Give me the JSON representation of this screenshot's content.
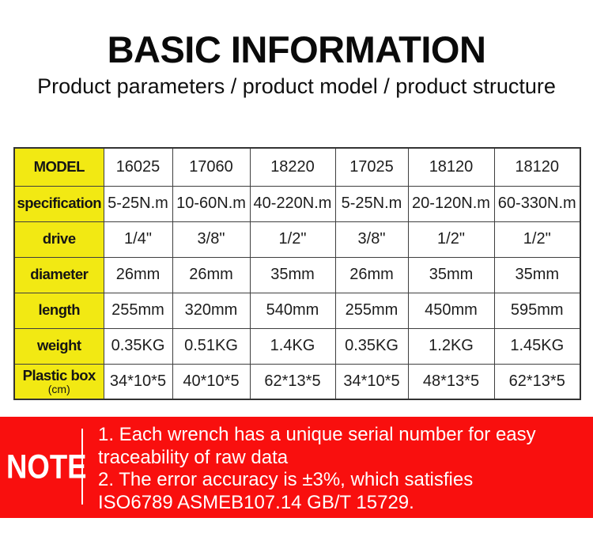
{
  "header": {
    "title": "BASIC INFORMATION",
    "subtitle": "Product parameters / product model / product structure"
  },
  "table": {
    "rows": [
      {
        "label": "MODEL",
        "sublabel": "",
        "values": [
          "16025",
          "17060",
          "18220",
          "17025",
          "18120",
          "18120"
        ]
      },
      {
        "label": "specification",
        "sublabel": "",
        "values": [
          "5-25N.m",
          "10-60N.m",
          "40-220N.m",
          "5-25N.m",
          "20-120N.m",
          "60-330N.m"
        ]
      },
      {
        "label": "drive",
        "sublabel": "",
        "values": [
          "1/4\"",
          "3/8\"",
          "1/2\"",
          "3/8\"",
          "1/2\"",
          "1/2\""
        ]
      },
      {
        "label": "diameter",
        "sublabel": "",
        "values": [
          "26mm",
          "26mm",
          "35mm",
          "26mm",
          "35mm",
          "35mm"
        ]
      },
      {
        "label": "length",
        "sublabel": "",
        "values": [
          "255mm",
          "320mm",
          "540mm",
          "255mm",
          "450mm",
          "595mm"
        ]
      },
      {
        "label": "weight",
        "sublabel": "",
        "values": [
          "0.35KG",
          "0.51KG",
          "1.4KG",
          "0.35KG",
          "1.2KG",
          "1.45KG"
        ]
      },
      {
        "label": "Plastic box",
        "sublabel": "(cm)",
        "values": [
          "34*10*5",
          "40*10*5",
          "62*13*5",
          "34*10*5",
          "48*13*5",
          "62*13*5"
        ]
      }
    ]
  },
  "note": {
    "label": "NOTE",
    "lines": [
      "1. Each wrench has a unique serial number for easy",
      "traceability of raw data",
      "2. The error accuracy is ±3%, which satisfies",
      "ISO6789 ASMEB107.14 GB/T 15729."
    ]
  },
  "colors": {
    "header_yellow": "#F2E913",
    "note_red": "#F90F0E"
  }
}
